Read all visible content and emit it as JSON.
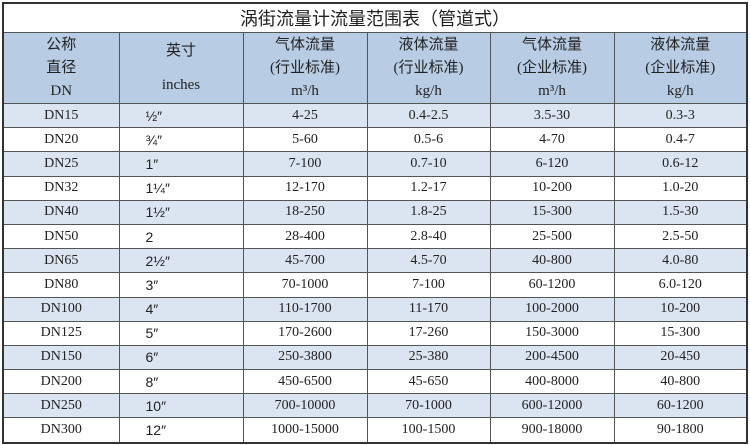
{
  "title": "涡街流量计流量范围表（管道式）",
  "headers": [
    {
      "l1": "公称",
      "l2": "直径",
      "l3": "DN"
    },
    {
      "l1": "英寸",
      "l2": "inches",
      "l3": ""
    },
    {
      "l1": "气体流量",
      "l2": "(行业标准)",
      "l3": "m³/h"
    },
    {
      "l1": "液体流量",
      "l2": "(行业标准)",
      "l3": "kg/h"
    },
    {
      "l1": "气体流量",
      "l2": "(企业标准)",
      "l3": "m³/h"
    },
    {
      "l1": "液体流量",
      "l2": "(企业标准)",
      "l3": "kg/h"
    }
  ],
  "rows": [
    [
      "DN15",
      "½″",
      "4-25",
      "0.4-2.5",
      "3.5-30",
      "0.3-3"
    ],
    [
      "DN20",
      "¾″",
      "5-60",
      "0.5-6",
      "4-70",
      "0.4-7"
    ],
    [
      "DN25",
      "1″",
      "7-100",
      "0.7-10",
      "6-120",
      "0.6-12"
    ],
    [
      "DN32",
      "1¼″",
      "12-170",
      "1.2-17",
      "10-200",
      "1.0-20"
    ],
    [
      "DN40",
      "1½″",
      "18-250",
      "1.8-25",
      "15-300",
      "1.5-30"
    ],
    [
      "DN50",
      "2",
      "28-400",
      "2.8-40",
      "25-500",
      "2.5-50"
    ],
    [
      "DN65",
      "2½″",
      "45-700",
      "4.5-70",
      "40-800",
      "4.0-80"
    ],
    [
      "DN80",
      "3″",
      "70-1000",
      "7-100",
      "60-1200",
      "6.0-120"
    ],
    [
      "DN100",
      "4″",
      "110-1700",
      "11-170",
      "100-2000",
      "10-200"
    ],
    [
      "DN125",
      "5″",
      "170-2600",
      "17-260",
      "150-3000",
      "15-300"
    ],
    [
      "DN150",
      "6″",
      "250-3800",
      "25-380",
      "200-4500",
      "20-450"
    ],
    [
      "DN200",
      "8″",
      "450-6500",
      "45-650",
      "400-8000",
      "40-800"
    ],
    [
      "DN250",
      "10″",
      "700-10000",
      "70-1000",
      "600-12000",
      "60-1200"
    ],
    [
      "DN300",
      "12″",
      "1000-15000",
      "100-1500",
      "900-18000",
      "90-1800"
    ]
  ]
}
